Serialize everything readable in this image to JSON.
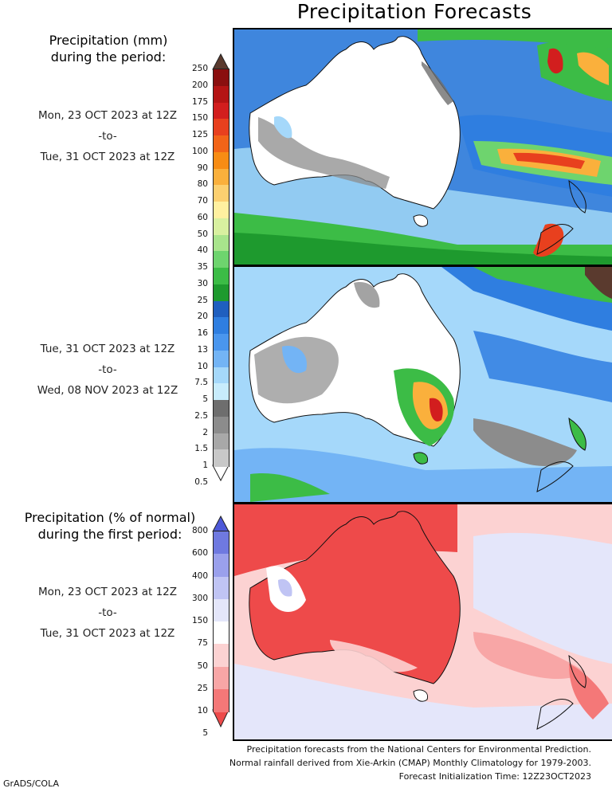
{
  "title": "Precipitation Forecasts",
  "legend_mm": {
    "heading_line1": "Precipitation (mm)",
    "heading_line2": "during the period:",
    "ticks": [
      "250",
      "200",
      "175",
      "150",
      "125",
      "100",
      "90",
      "80",
      "70",
      "60",
      "50",
      "40",
      "35",
      "30",
      "25",
      "20",
      "16",
      "13",
      "10",
      "7.5",
      "5",
      "2.5",
      "2",
      "1.5",
      "1",
      "0.5"
    ],
    "colors": [
      "#5a3a2e",
      "#8a0f0f",
      "#b41414",
      "#d21e1e",
      "#e8401e",
      "#f26418",
      "#f78c14",
      "#fab03c",
      "#fcd070",
      "#fff0a0",
      "#d8f0a0",
      "#a8e48c",
      "#6ed46e",
      "#3cbc46",
      "#1e9a2e",
      "#1f5fbf",
      "#2f7ee0",
      "#4a96ee",
      "#73b4f5",
      "#a5d8fa",
      "#c8ecfc",
      "#6e6e6e",
      "#8c8c8c",
      "#a8a8a8",
      "#c8c8c8",
      "#ffffff"
    ]
  },
  "period1": {
    "start": "Mon, 23 OCT 2023 at 12Z",
    "sep": "-to-",
    "end": "Tue, 31 OCT 2023 at 12Z"
  },
  "period2": {
    "start": "Tue, 31 OCT 2023 at 12Z",
    "sep": "-to-",
    "end": "Wed, 08 NOV 2023 at 12Z"
  },
  "legend_pct": {
    "heading_line1": "Precipitation (% of normal)",
    "heading_line2": "during the first period:",
    "ticks": [
      "800",
      "600",
      "400",
      "300",
      "150",
      "75",
      "50",
      "25",
      "10",
      "5"
    ],
    "colors": [
      "#4d58d8",
      "#6f79e0",
      "#9aa0ec",
      "#c0c4f4",
      "#e4e6fa",
      "#ffffff",
      "#fcd2d2",
      "#f8a6a6",
      "#f47878",
      "#ee4a4a"
    ]
  },
  "period3": {
    "start": "Mon, 23 OCT 2023 at 12Z",
    "sep": "-to-",
    "end": "Tue, 31 OCT 2023 at 12Z"
  },
  "footer": {
    "line1": "Precipitation forecasts from the National Centers for Environmental Prediction.",
    "line2": "Normal rainfall derived from Xie-Arkin (CMAP) Monthly Climatology for 1979-2003.",
    "line3": "Forecast Initialization Time: 12Z23OCT2023"
  },
  "credit": "GrADS/COLA"
}
